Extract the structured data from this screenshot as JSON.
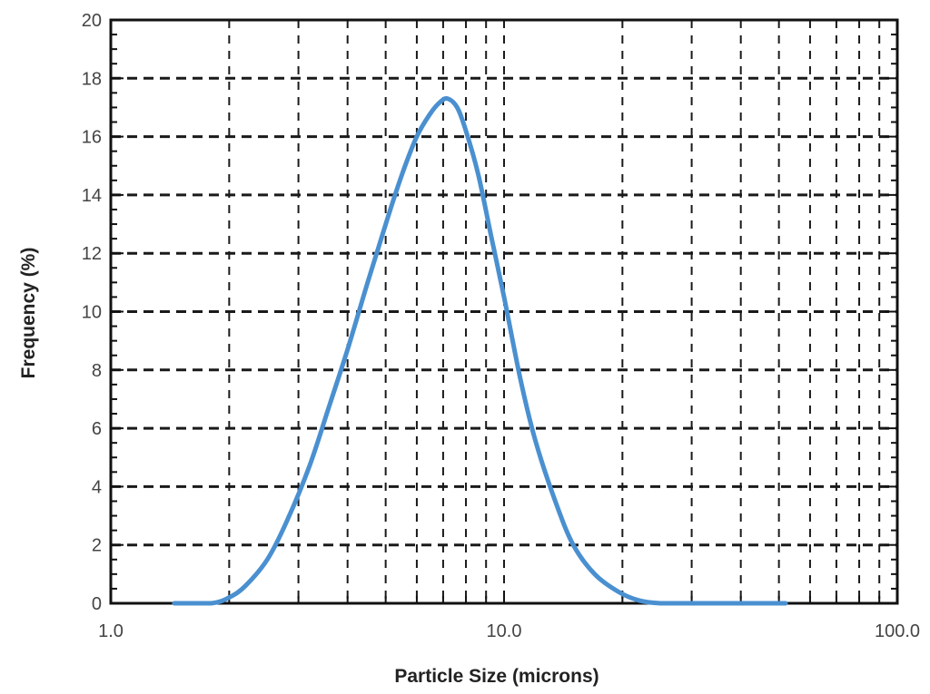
{
  "chart_data": {
    "type": "line",
    "xlabel": "Particle Size (microns)",
    "ylabel": "Frequency (%)",
    "x_scale": "log",
    "xlim": [
      1.0,
      100.0
    ],
    "ylim": [
      0,
      20
    ],
    "x_ticks": [
      1.0,
      10.0,
      100.0
    ],
    "x_tick_labels": [
      "1.0",
      "10.0",
      "100.0"
    ],
    "y_ticks": [
      0,
      2,
      4,
      6,
      8,
      10,
      12,
      14,
      16,
      18,
      20
    ],
    "y_tick_labels": [
      "0",
      "2",
      "4",
      "6",
      "8",
      "10",
      "12",
      "14",
      "16",
      "18",
      "20"
    ],
    "grid": true,
    "legend": "none",
    "line_color": "#4a90d0",
    "series": [
      {
        "x": [
          1.45,
          1.8,
          2.0,
          2.2,
          2.5,
          2.8,
          3.2,
          3.6,
          4.0,
          4.5,
          5.0,
          5.5,
          6.0,
          6.5,
          6.9,
          7.2,
          7.6,
          8.0,
          8.6,
          9.3,
          10.0,
          11.0,
          12.0,
          13.5,
          15.0,
          17.0,
          19.5,
          22.0,
          25.0,
          30.0,
          40.0,
          52.0
        ],
        "y": [
          0.0,
          0.0,
          0.2,
          0.6,
          1.5,
          2.8,
          4.7,
          6.8,
          8.7,
          11.0,
          13.0,
          14.7,
          16.0,
          16.8,
          17.2,
          17.3,
          17.0,
          16.2,
          14.7,
          12.5,
          10.5,
          7.7,
          5.6,
          3.5,
          2.0,
          1.0,
          0.4,
          0.1,
          0.0,
          0.0,
          0.0,
          0.0
        ]
      }
    ]
  }
}
